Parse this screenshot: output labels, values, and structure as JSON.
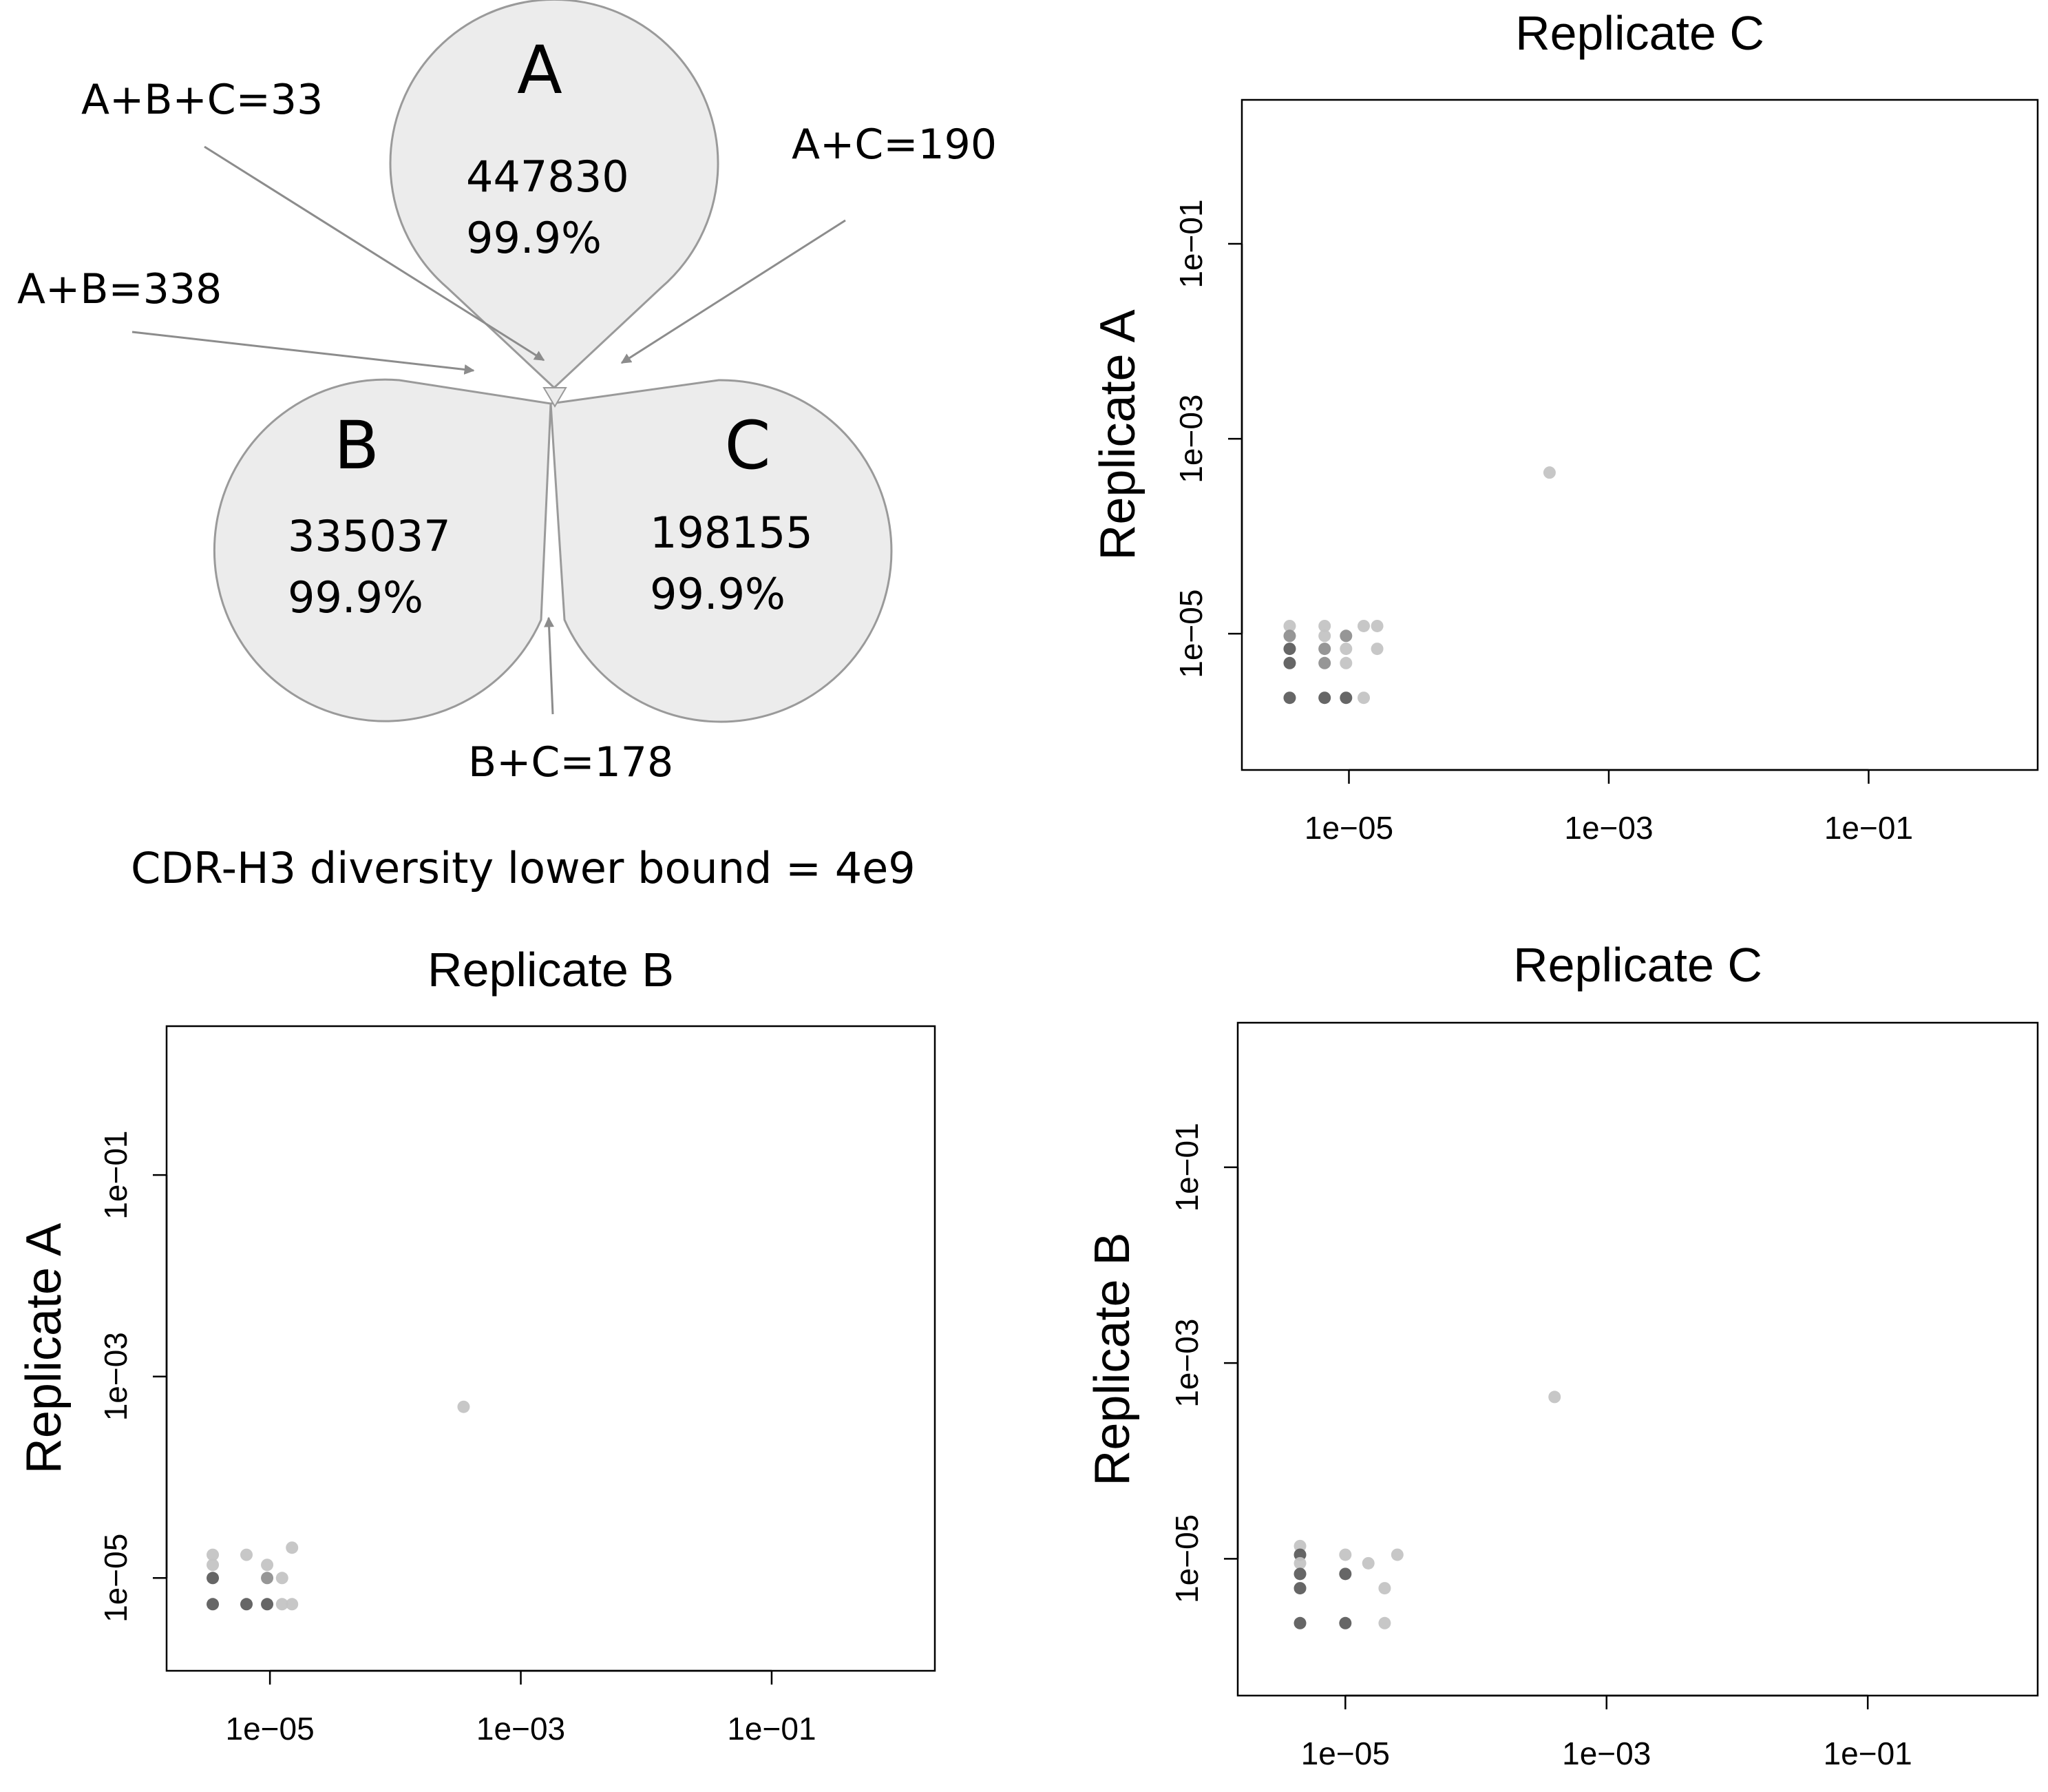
{
  "venn": {
    "sets": [
      {
        "name": "A",
        "count": "447830",
        "percent": "99.9%"
      },
      {
        "name": "B",
        "count": "335037",
        "percent": "99.9%"
      },
      {
        "name": "C",
        "count": "198155",
        "percent": "99.9%"
      }
    ],
    "overlaps": {
      "abc": "A+B+C=33",
      "ac": "A+C=190",
      "ab": "A+B=338",
      "bc": "B+C=178"
    },
    "caption": "CDR-H3 diversity lower bound = 4e9"
  },
  "colors": {
    "venn_fill": "#ececec",
    "venn_stroke": "#9a9a9a",
    "arrow": "#8c8c8c",
    "point_dark": "#5e5e5e",
    "point_mid": "#909090",
    "point_light": "#c4c4c4"
  },
  "chart_data": [
    {
      "id": "plot_c_vs_a",
      "type": "scatter",
      "title": "Replicate C",
      "ylabel": "Replicate A",
      "xlabel": "",
      "log_scale": true,
      "xlim": [
        1.5e-06,
        2
      ],
      "ylim": [
        4e-07,
        3
      ],
      "x_ticks": [
        {
          "value": 1e-05,
          "label": "1e−05"
        },
        {
          "value": 0.001,
          "label": "1e−03"
        },
        {
          "value": 0.1,
          "label": "1e−01"
        }
      ],
      "y_ticks": [
        {
          "value": 1e-05,
          "label": "1e−05"
        },
        {
          "value": 0.001,
          "label": "1e−03"
        },
        {
          "value": 0.1,
          "label": "1e−01"
        }
      ],
      "points": [
        {
          "x": 3.5e-06,
          "y": 1.2e-05,
          "shade": "light"
        },
        {
          "x": 3.5e-06,
          "y": 9.5e-06,
          "shade": "mid"
        },
        {
          "x": 3.5e-06,
          "y": 7e-06,
          "shade": "dark"
        },
        {
          "x": 3.5e-06,
          "y": 5e-06,
          "shade": "dark"
        },
        {
          "x": 3.5e-06,
          "y": 2.2e-06,
          "shade": "dark"
        },
        {
          "x": 6.5e-06,
          "y": 1.2e-05,
          "shade": "light"
        },
        {
          "x": 6.5e-06,
          "y": 9.5e-06,
          "shade": "light"
        },
        {
          "x": 6.5e-06,
          "y": 7e-06,
          "shade": "mid"
        },
        {
          "x": 6.5e-06,
          "y": 5e-06,
          "shade": "mid"
        },
        {
          "x": 6.5e-06,
          "y": 2.2e-06,
          "shade": "dark"
        },
        {
          "x": 9.5e-06,
          "y": 9.5e-06,
          "shade": "mid"
        },
        {
          "x": 9.5e-06,
          "y": 7e-06,
          "shade": "light"
        },
        {
          "x": 9.5e-06,
          "y": 5e-06,
          "shade": "light"
        },
        {
          "x": 9.5e-06,
          "y": 2.2e-06,
          "shade": "dark"
        },
        {
          "x": 1.3e-05,
          "y": 1.2e-05,
          "shade": "light"
        },
        {
          "x": 1.3e-05,
          "y": 2.2e-06,
          "shade": "light"
        },
        {
          "x": 1.65e-05,
          "y": 1.2e-05,
          "shade": "light"
        },
        {
          "x": 1.65e-05,
          "y": 7e-06,
          "shade": "light"
        },
        {
          "x": 0.00035,
          "y": 0.00045,
          "shade": "light"
        }
      ]
    },
    {
      "id": "plot_b_vs_a",
      "type": "scatter",
      "title": "Replicate B",
      "ylabel": "Replicate A",
      "xlabel": "",
      "log_scale": true,
      "xlim": [
        1.5e-06,
        2
      ],
      "ylim": [
        1.2e-06,
        3
      ],
      "x_ticks": [
        {
          "value": 1e-05,
          "label": "1e−05"
        },
        {
          "value": 0.001,
          "label": "1e−03"
        },
        {
          "value": 0.1,
          "label": "1e−01"
        }
      ],
      "y_ticks": [
        {
          "value": 1e-05,
          "label": "1e−05"
        },
        {
          "value": 0.001,
          "label": "1e−03"
        },
        {
          "value": 0.1,
          "label": "1e−01"
        }
      ],
      "points": [
        {
          "x": 3.5e-06,
          "y": 1.7e-05,
          "shade": "light"
        },
        {
          "x": 3.5e-06,
          "y": 1.35e-05,
          "shade": "light"
        },
        {
          "x": 3.5e-06,
          "y": 1e-05,
          "shade": "dark"
        },
        {
          "x": 3.5e-06,
          "y": 5.5e-06,
          "shade": "dark"
        },
        {
          "x": 6.5e-06,
          "y": 1.7e-05,
          "shade": "light"
        },
        {
          "x": 6.5e-06,
          "y": 5.5e-06,
          "shade": "dark"
        },
        {
          "x": 9.5e-06,
          "y": 1.35e-05,
          "shade": "light"
        },
        {
          "x": 9.5e-06,
          "y": 1e-05,
          "shade": "mid"
        },
        {
          "x": 9.5e-06,
          "y": 5.5e-06,
          "shade": "dark"
        },
        {
          "x": 1.25e-05,
          "y": 1e-05,
          "shade": "light"
        },
        {
          "x": 1.25e-05,
          "y": 5.5e-06,
          "shade": "light"
        },
        {
          "x": 1.5e-05,
          "y": 2e-05,
          "shade": "light"
        },
        {
          "x": 1.5e-05,
          "y": 5.5e-06,
          "shade": "light"
        },
        {
          "x": 0.00035,
          "y": 0.0005,
          "shade": "light"
        }
      ]
    },
    {
      "id": "plot_c_vs_b",
      "type": "scatter",
      "title": "Replicate C",
      "ylabel": "Replicate B",
      "xlabel": "",
      "log_scale": true,
      "xlim": [
        1.5e-06,
        2
      ],
      "ylim": [
        4e-07,
        3
      ],
      "x_ticks": [
        {
          "value": 1e-05,
          "label": "1e−05"
        },
        {
          "value": 0.001,
          "label": "1e−03"
        },
        {
          "value": 0.1,
          "label": "1e−01"
        }
      ],
      "y_ticks": [
        {
          "value": 1e-05,
          "label": "1e−05"
        },
        {
          "value": 0.001,
          "label": "1e−03"
        },
        {
          "value": 0.1,
          "label": "1e−01"
        }
      ],
      "points": [
        {
          "x": 4.5e-06,
          "y": 1.35e-05,
          "shade": "light"
        },
        {
          "x": 4.5e-06,
          "y": 1.1e-05,
          "shade": "dark"
        },
        {
          "x": 4.5e-06,
          "y": 9e-06,
          "shade": "light"
        },
        {
          "x": 4.5e-06,
          "y": 7e-06,
          "shade": "dark"
        },
        {
          "x": 4.5e-06,
          "y": 5e-06,
          "shade": "dark"
        },
        {
          "x": 4.5e-06,
          "y": 2.2e-06,
          "shade": "dark"
        },
        {
          "x": 1e-05,
          "y": 1.1e-05,
          "shade": "light"
        },
        {
          "x": 1e-05,
          "y": 7e-06,
          "shade": "dark"
        },
        {
          "x": 1e-05,
          "y": 2.2e-06,
          "shade": "dark"
        },
        {
          "x": 1.5e-05,
          "y": 9e-06,
          "shade": "light"
        },
        {
          "x": 2e-05,
          "y": 5e-06,
          "shade": "light"
        },
        {
          "x": 2e-05,
          "y": 2.2e-06,
          "shade": "light"
        },
        {
          "x": 2.5e-05,
          "y": 1.1e-05,
          "shade": "light"
        },
        {
          "x": 0.0004,
          "y": 0.00045,
          "shade": "light"
        }
      ]
    }
  ]
}
